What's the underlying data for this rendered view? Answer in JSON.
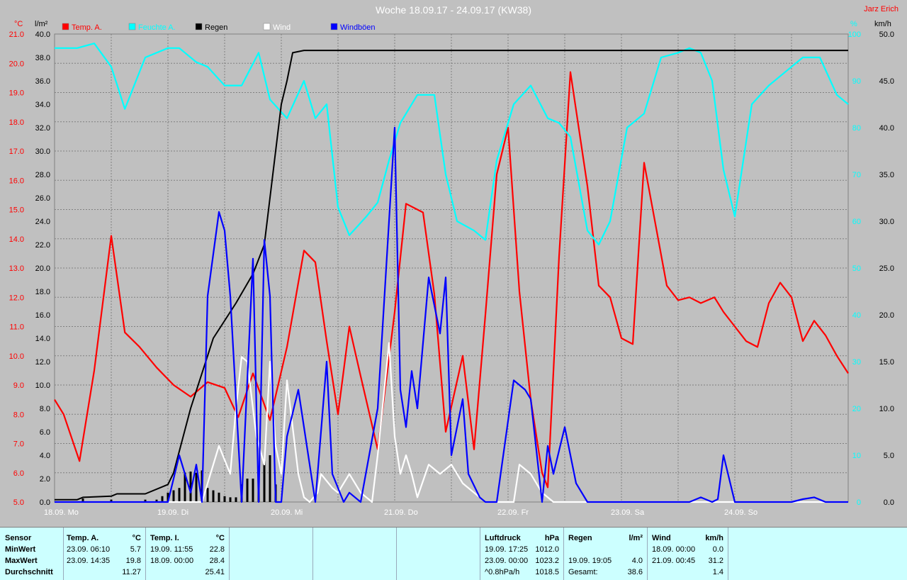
{
  "chart_data": {
    "type": "line",
    "title": "Woche 18.09.17 - 24.09.17 (KW38)",
    "author": "Jarz Erich",
    "x_start": "18.09.17 00:00",
    "x_end": "25.09.17 00:00",
    "day_labels": [
      "18.09. Mo",
      "19.09. Di",
      "20.09. Mi",
      "21.09. Do",
      "22.09. Fr",
      "23.09. Sa",
      "24.09. So"
    ],
    "axes": {
      "temp": {
        "unit": "°C",
        "range": [
          5.0,
          21.0
        ],
        "ticks": [
          "21.0",
          "20.0",
          "19.0",
          "18.0",
          "17.0",
          "16.0",
          "15.0",
          "14.0",
          "13.0",
          "12.0",
          "11.0",
          "10.0",
          "9.0",
          "8.0",
          "7.0",
          "6.0",
          "5.0"
        ],
        "color": "#ff0000"
      },
      "rain": {
        "unit": "l/m²",
        "range": [
          0,
          40
        ],
        "ticks": [
          "40.0",
          "38.0",
          "36.0",
          "34.0",
          "32.0",
          "30.0",
          "28.0",
          "26.0",
          "24.0",
          "22.0",
          "20.0",
          "18.0",
          "16.0",
          "14.0",
          "12.0",
          "10.0",
          "8.0",
          "6.0",
          "4.0",
          "2.0",
          "0.0"
        ],
        "color": "#000000"
      },
      "humidity": {
        "unit": "%",
        "range": [
          0,
          100
        ],
        "ticks": [
          "100",
          "90",
          "80",
          "70",
          "60",
          "50",
          "40",
          "30",
          "20",
          "10",
          "0"
        ],
        "color": "#00ffff"
      },
      "wind": {
        "unit": "km/h",
        "range": [
          0,
          50
        ],
        "ticks": [
          "50.0",
          "45.0",
          "40.0",
          "35.0",
          "30.0",
          "25.0",
          "20.0",
          "15.0",
          "10.0",
          "5.0",
          "0.0"
        ],
        "color": "#000000"
      }
    },
    "legend": [
      {
        "name": "Temp. A.",
        "color": "#ff0000"
      },
      {
        "name": "Feuchte A.",
        "color": "#00ffff"
      },
      {
        "name": "Regen",
        "color": "#000000"
      },
      {
        "name": "Wind",
        "color": "#ffffff"
      },
      {
        "name": "Windböen",
        "color": "#0000ff"
      }
    ],
    "series": [
      {
        "name": "Temp. A.",
        "axis": "temp",
        "color": "#ff0000",
        "x": [
          0,
          0.08,
          0.22,
          0.35,
          0.5,
          0.62,
          0.75,
          0.9,
          1.05,
          1.2,
          1.35,
          1.5,
          1.62,
          1.75,
          1.9,
          2.05,
          2.2,
          2.3,
          2.4,
          2.5,
          2.6,
          2.7,
          2.85,
          3.0,
          3.1,
          3.25,
          3.35,
          3.45,
          3.6,
          3.7,
          3.8,
          3.9,
          4.0,
          4.1,
          4.2,
          4.3,
          4.35,
          4.45,
          4.55,
          4.7,
          4.8,
          4.9,
          5.0,
          5.1,
          5.2,
          5.3,
          5.4,
          5.5,
          5.6,
          5.7,
          5.82,
          5.9,
          6.0,
          6.1,
          6.2,
          6.3,
          6.4,
          6.5,
          6.6,
          6.7,
          6.8,
          6.9,
          7.0
        ],
        "y": [
          8.5,
          8.0,
          6.4,
          9.5,
          14.1,
          10.8,
          10.3,
          9.6,
          9.0,
          8.6,
          9.1,
          8.9,
          7.9,
          9.4,
          7.8,
          10.3,
          13.6,
          13.2,
          10.5,
          8.0,
          11.0,
          9.3,
          6.8,
          11.5,
          15.2,
          14.9,
          12.1,
          7.4,
          10.0,
          6.8,
          11.4,
          16.2,
          17.8,
          12.2,
          8.5,
          6.0,
          5.5,
          13.4,
          19.7,
          15.8,
          12.4,
          12.0,
          10.6,
          10.4,
          16.6,
          14.5,
          12.4,
          11.9,
          12.0,
          11.8,
          12.0,
          11.5,
          11.0,
          10.5,
          10.3,
          11.8,
          12.5,
          12.0,
          10.5,
          11.2,
          10.7,
          10.0,
          9.4
        ]
      },
      {
        "name": "Feuchte A.",
        "axis": "humidity",
        "color": "#00ffff",
        "x": [
          0,
          0.2,
          0.35,
          0.5,
          0.62,
          0.8,
          1.0,
          1.1,
          1.25,
          1.35,
          1.5,
          1.65,
          1.8,
          1.9,
          2.05,
          2.2,
          2.3,
          2.4,
          2.5,
          2.6,
          2.75,
          2.85,
          2.95,
          3.05,
          3.2,
          3.35,
          3.45,
          3.55,
          3.7,
          3.8,
          3.9,
          4.05,
          4.2,
          4.35,
          4.45,
          4.55,
          4.7,
          4.8,
          4.9,
          5.05,
          5.2,
          5.35,
          5.5,
          5.6,
          5.7,
          5.8,
          5.9,
          6.0,
          6.15,
          6.3,
          6.45,
          6.6,
          6.75,
          6.9,
          7.0
        ],
        "y": [
          97,
          97,
          98,
          93,
          84,
          95,
          97,
          97,
          94,
          93,
          89,
          89,
          96,
          86,
          82,
          90,
          82,
          85,
          63,
          57,
          61,
          64,
          73,
          81,
          87,
          87,
          70,
          60,
          58,
          56,
          73,
          85,
          89,
          82,
          81,
          78,
          58,
          55,
          60,
          80,
          83,
          95,
          96,
          97,
          96,
          90,
          71,
          61,
          85,
          89,
          92,
          95,
          95,
          87,
          85
        ]
      },
      {
        "name": "Regen",
        "axis": "rain",
        "color": "#000000",
        "x": [
          0,
          0.2,
          0.25,
          0.5,
          0.55,
          0.8,
          1.0,
          1.05,
          1.2,
          1.4,
          1.6,
          1.75,
          1.85,
          1.95,
          2.0,
          2.05,
          2.1,
          2.2,
          2.5,
          3.0,
          4.0,
          5.0,
          6.0,
          7.0
        ],
        "y": [
          0.2,
          0.2,
          0.4,
          0.5,
          0.7,
          0.7,
          1.5,
          2.5,
          8.0,
          14.0,
          17.0,
          19.5,
          22.0,
          30.0,
          34.0,
          36.0,
          38.4,
          38.6,
          38.6,
          38.6,
          38.6,
          38.6,
          38.6,
          38.6
        ]
      },
      {
        "name": "Wind",
        "axis": "wind",
        "color": "#ffffff",
        "x": [
          0,
          1.3,
          1.45,
          1.55,
          1.6,
          1.65,
          1.7,
          1.78,
          1.85,
          1.9,
          1.95,
          2.0,
          2.05,
          2.1,
          2.15,
          2.2,
          2.25,
          2.32,
          2.35,
          2.45,
          2.5,
          2.6,
          2.7,
          2.8,
          2.85,
          2.95,
          3.0,
          3.05,
          3.1,
          3.15,
          3.2,
          3.3,
          3.4,
          3.5,
          3.6,
          3.7,
          3.8,
          3.95,
          4.05,
          4.1,
          4.2,
          4.3,
          4.35,
          4.4,
          4.5,
          4.6,
          4.7,
          5.0,
          6.0,
          6.1,
          7.0
        ],
        "y": [
          0,
          0,
          6,
          3,
          10,
          15.5,
          15,
          7,
          4,
          15,
          6,
          3,
          13,
          8,
          3,
          0.5,
          0,
          1,
          3,
          1.5,
          1,
          3,
          1,
          0,
          5,
          17,
          7,
          3,
          5,
          3,
          0.5,
          4,
          3,
          4,
          2,
          1,
          0,
          0,
          0,
          4,
          3,
          1,
          0.5,
          0,
          0,
          0,
          0,
          0,
          0,
          0,
          0
        ]
      },
      {
        "name": "Windböen",
        "axis": "wind",
        "color": "#0000ff",
        "x": [
          0,
          0.3,
          0.6,
          0.9,
          1.0,
          1.1,
          1.2,
          1.25,
          1.3,
          1.35,
          1.45,
          1.5,
          1.55,
          1.65,
          1.75,
          1.8,
          1.85,
          1.9,
          1.95,
          2.0,
          2.05,
          2.15,
          2.2,
          2.3,
          2.4,
          2.45,
          2.55,
          2.6,
          2.7,
          2.85,
          3.0,
          3.05,
          3.1,
          3.15,
          3.2,
          3.3,
          3.4,
          3.45,
          3.5,
          3.6,
          3.65,
          3.75,
          3.8,
          3.9,
          4.05,
          4.15,
          4.2,
          4.3,
          4.35,
          4.4,
          4.5,
          4.6,
          4.7,
          5.0,
          5.6,
          5.7,
          5.8,
          5.85,
          5.9,
          6.0,
          6.5,
          6.6,
          6.7,
          6.8,
          7.0
        ],
        "y": [
          0,
          0,
          0,
          0,
          0,
          5,
          1,
          4,
          0,
          22,
          31,
          29,
          22,
          0,
          26,
          0,
          28,
          22,
          0,
          0,
          7,
          12,
          8,
          0,
          15,
          3,
          0,
          1,
          0,
          10,
          40,
          12,
          8,
          14,
          10,
          24,
          18,
          24,
          5,
          11,
          3,
          0.5,
          0,
          0,
          13,
          12,
          11,
          0,
          6,
          3,
          8,
          2,
          0,
          0,
          0,
          0.5,
          0,
          0.3,
          5,
          0,
          0,
          0.3,
          0.5,
          0,
          0
        ]
      }
    ],
    "rain_hourly": {
      "name": "Regen",
      "axis": "rain",
      "color": "#000000",
      "x": [
        0.25,
        0.5,
        0.8,
        0.9,
        0.95,
        1.0,
        1.05,
        1.1,
        1.15,
        1.2,
        1.25,
        1.3,
        1.35,
        1.4,
        1.45,
        1.5,
        1.55,
        1.6,
        1.65,
        1.7,
        1.75,
        1.8,
        1.85,
        1.9,
        1.95
      ],
      "y": [
        0.3,
        0.2,
        0.2,
        0.2,
        0.5,
        0.8,
        1.0,
        1.2,
        2.5,
        2.6,
        2.5,
        2.7,
        1.2,
        1.0,
        0.8,
        0.5,
        0.4,
        0.4,
        1.5,
        2.0,
        2.0,
        3.0,
        3.5,
        4.0,
        1.5
      ]
    }
  },
  "table": {
    "sensor": {
      "label": "Sensor",
      "min": "MinWert",
      "max": "MaxWert",
      "avg": "Durchschnitt"
    },
    "temp_a": {
      "title": "Temp. A.",
      "unit": "°C",
      "min_time": "23.09.  06:10",
      "min_val": "5.7",
      "max_time": "23.09.  14:35",
      "max_val": "19.8",
      "avg_val": "11.27"
    },
    "temp_i": {
      "title": "Temp. I.",
      "unit": "°C",
      "min_time": "19.09.  11:55",
      "min_val": "22.8",
      "max_time": "18.09.  00:00",
      "max_val": "28.4",
      "avg_val": "25.41"
    },
    "pressure": {
      "title": "Luftdruck",
      "unit": "hPa",
      "min_time": "19.09.  17:25",
      "min_val": "1012.0",
      "max_time": "23.09.  00:00",
      "max_val": "1023.2",
      "avg_label": "^0.8hPa/h",
      "avg_val": "1018.5"
    },
    "rain": {
      "title": "Regen",
      "unit": "l/m²",
      "max_time": "19.09.  19:05",
      "max_val": "4.0",
      "total_label": "Gesamt:",
      "total_val": "38.6"
    },
    "wind": {
      "title": "Wind",
      "unit": "km/h",
      "min_time": "18.09.  00:00",
      "min_val": "0.0",
      "max_time": "21.09.  00:45",
      "max_val": "31.2",
      "avg_val": "1.4"
    }
  }
}
